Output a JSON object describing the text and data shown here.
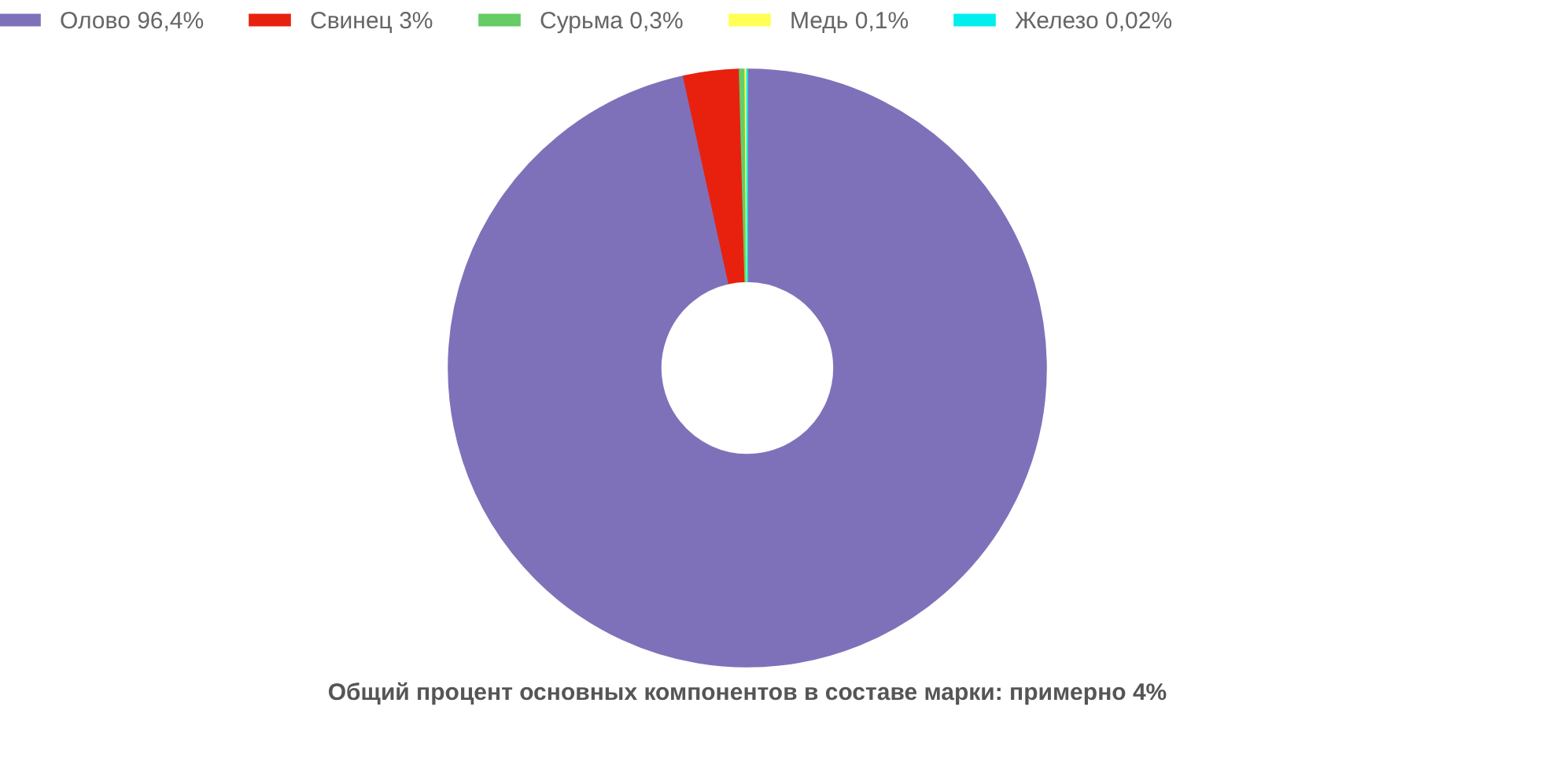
{
  "chart_data": {
    "type": "donut",
    "categories": [
      "Олово",
      "Свинец",
      "Сурьма",
      "Медь",
      "Железо"
    ],
    "values": [
      96.4,
      3,
      0.3,
      0.1,
      0.02
    ],
    "value_labels": [
      "96,4%",
      "3%",
      "0,3%",
      "0,1%",
      "0,02%"
    ],
    "colors": [
      "#7f71b9",
      "#e8210f",
      "#66cc66",
      "#ffff55",
      "#00eeee"
    ],
    "legend": "top",
    "annotations": [
      "Общий процент основных компонентов в составе марки: примерно 4%"
    ]
  }
}
